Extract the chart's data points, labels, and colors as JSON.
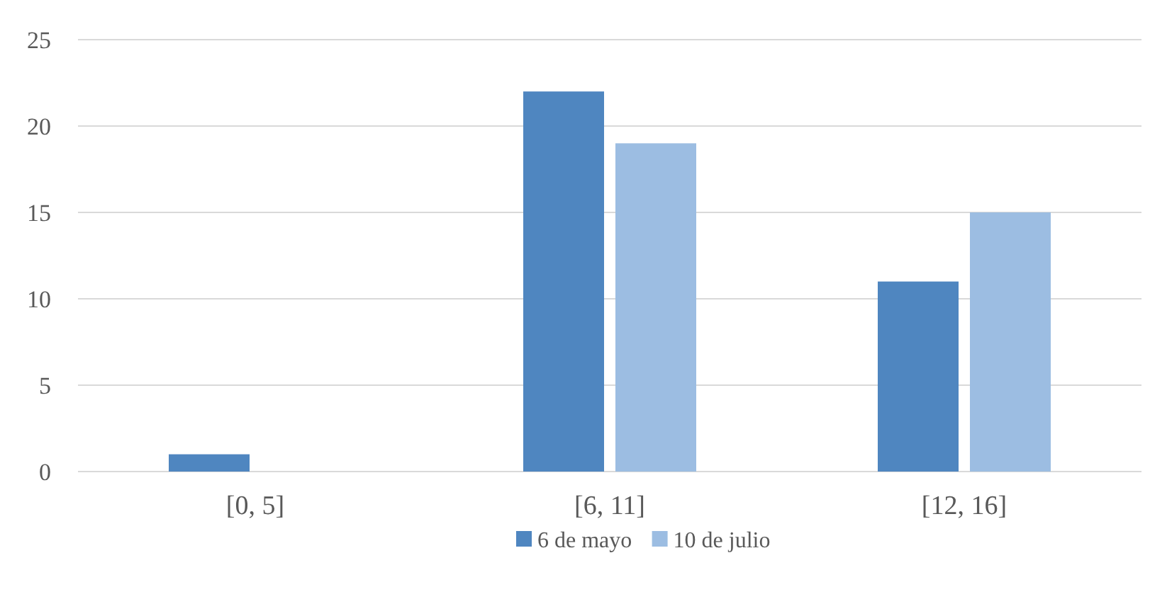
{
  "chart_data": {
    "type": "bar",
    "categories": [
      "[0, 5]",
      "[6, 11]",
      "[12, 16]"
    ],
    "series": [
      {
        "name": "6 de mayo",
        "color": "#4f86c0",
        "values": [
          1,
          22,
          11
        ]
      },
      {
        "name": "10 de julio",
        "color": "#9cbde2",
        "values": [
          0,
          19,
          15
        ]
      }
    ],
    "ylim": [
      0,
      25
    ],
    "yticks": [
      0,
      5,
      10,
      15,
      20,
      25
    ],
    "grid": "y",
    "legend": "bottom"
  }
}
